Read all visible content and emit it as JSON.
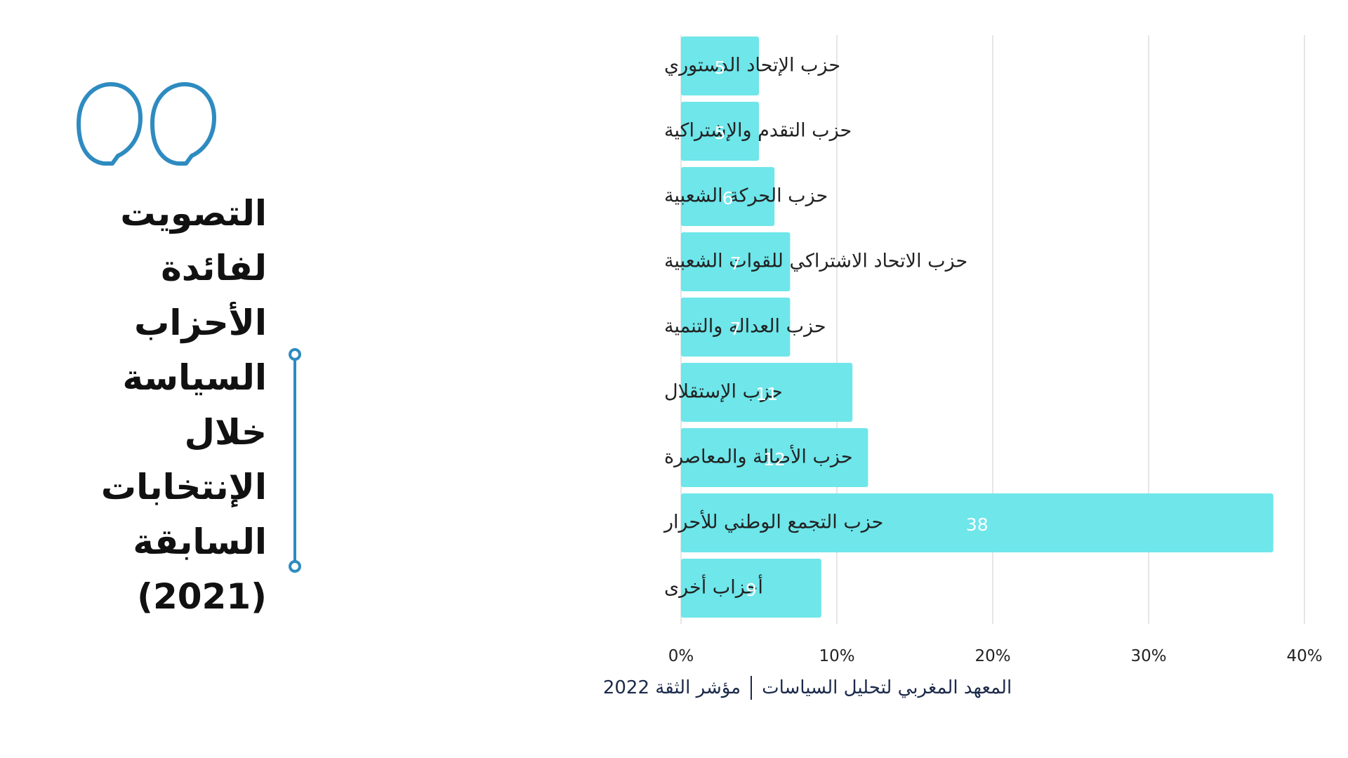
{
  "title_lines": [
    "التصويت",
    "لفائدة",
    "الأحزاب",
    "السياسة",
    "خلال",
    "الإنتخابات",
    "السابقة",
    "(2021)"
  ],
  "footer": {
    "institution": "المعهد المغربي لتحليل السياسات",
    "report": "مؤشر الثقة 2022"
  },
  "colors": {
    "bar": "#6ee6ea",
    "accent": "#2e8bc0",
    "grid": "#dddddd",
    "text": "#222222",
    "footer": "#1c2a4a"
  },
  "chart_data": {
    "type": "bar",
    "orientation": "horizontal",
    "categories": [
      "حزب الإتحاد الدستوري",
      "حزب التقدم والإشتراكية",
      "حزب الحركة الشعبية",
      "حزب الاتحاد الاشتراكي للقوات الشعبية",
      "حزب العدالة والتنمية",
      "حزب الإستقلال",
      "حزب الأصالة والمعاصرة",
      "حزب التجمع الوطني للأحرار",
      "أحزاب أخرى"
    ],
    "values": [
      5,
      5,
      6,
      7,
      7,
      11,
      12,
      38,
      9
    ],
    "value_labels": [
      "5",
      "5",
      "6",
      "7",
      "7",
      "11",
      "12",
      "38",
      "9"
    ],
    "xlim": [
      0,
      40
    ],
    "xticks": [
      0,
      10,
      20,
      30,
      40
    ],
    "xtick_labels": [
      "0%",
      "10%",
      "20%",
      "30%",
      "40%"
    ],
    "grid": true,
    "legend": false
  }
}
